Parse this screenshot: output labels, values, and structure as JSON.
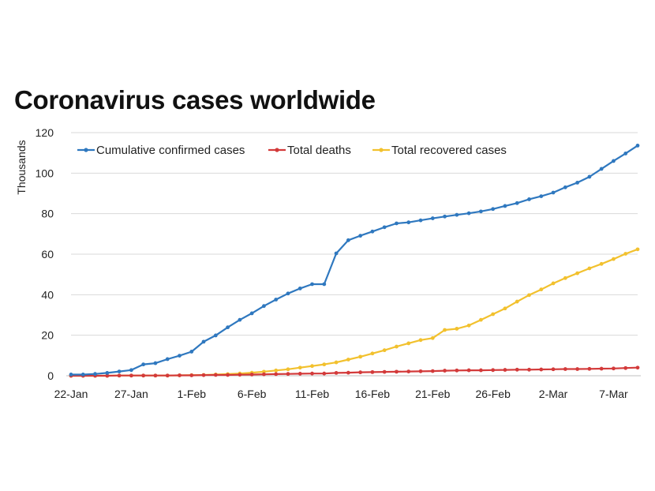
{
  "chart_data": {
    "type": "line",
    "title": "Coronavirus cases worldwide",
    "ylabel": "Thousands",
    "xlabel": "",
    "ylim": [
      0,
      120
    ],
    "yticks": [
      0,
      20,
      40,
      60,
      80,
      100,
      120
    ],
    "grid": true,
    "legend": "top",
    "x_start": "22-Jan",
    "xtick_labels": [
      "22-Jan",
      "27-Jan",
      "1-Feb",
      "6-Feb",
      "11-Feb",
      "16-Feb",
      "21-Feb",
      "26-Feb",
      "2-Mar",
      "7-Mar"
    ],
    "series": [
      {
        "name": "Cumulative confirmed cases",
        "color": "#2f78bf",
        "values": [
          0.6,
          0.6,
          0.9,
          1.4,
          2.1,
          2.8,
          5.6,
          6.2,
          8.2,
          9.9,
          11.9,
          16.8,
          19.9,
          23.9,
          27.6,
          30.8,
          34.4,
          37.6,
          40.6,
          43.1,
          45.2,
          45.2,
          60.4,
          66.9,
          69.1,
          71.2,
          73.3,
          75.2,
          75.7,
          76.7,
          77.7,
          78.6,
          79.4,
          80.2,
          81.1,
          82.3,
          83.8,
          85.2,
          87.1,
          88.6,
          90.4,
          93.0,
          95.3,
          98.2,
          102.1,
          106.0,
          109.7,
          113.6
        ],
        "markers": true
      },
      {
        "name": "Total deaths",
        "color": "#d33a3a",
        "values": [
          0.0,
          0.0,
          0.0,
          0.0,
          0.1,
          0.1,
          0.1,
          0.1,
          0.1,
          0.2,
          0.2,
          0.3,
          0.4,
          0.4,
          0.5,
          0.6,
          0.7,
          0.8,
          0.9,
          1.0,
          1.1,
          1.1,
          1.4,
          1.5,
          1.7,
          1.8,
          1.9,
          2.0,
          2.1,
          2.2,
          2.3,
          2.5,
          2.6,
          2.7,
          2.7,
          2.8,
          2.9,
          3.0,
          3.0,
          3.1,
          3.2,
          3.3,
          3.3,
          3.4,
          3.5,
          3.6,
          3.8,
          4.0
        ],
        "markers": true
      },
      {
        "name": "Total recovered cases",
        "color": "#f2c12e",
        "values": [
          0.0,
          0.0,
          0.0,
          0.0,
          0.1,
          0.1,
          0.1,
          0.1,
          0.1,
          0.2,
          0.3,
          0.4,
          0.6,
          0.8,
          1.1,
          1.5,
          2.0,
          2.6,
          3.2,
          4.0,
          4.8,
          5.6,
          6.6,
          8.0,
          9.4,
          11.0,
          12.6,
          14.4,
          16.0,
          17.6,
          18.6,
          22.6,
          23.2,
          24.8,
          27.6,
          30.4,
          33.2,
          36.6,
          39.8,
          42.6,
          45.6,
          48.2,
          50.6,
          53.0,
          55.2,
          57.6,
          60.2,
          62.4
        ],
        "markers": true
      }
    ]
  }
}
